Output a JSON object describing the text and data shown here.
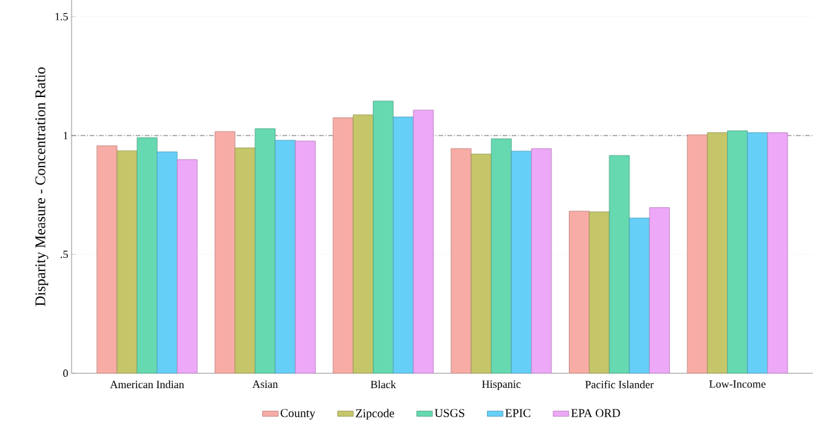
{
  "chart_data": {
    "type": "bar",
    "ylabel": "Disparity Measure - Concentration Ratio",
    "categories": [
      "American Indian",
      "Asian",
      "Black",
      "Hispanic",
      "Pacific Islander",
      "Low-Income"
    ],
    "series": [
      {
        "name": "County",
        "color": "#f8aca6",
        "values": [
          0.957,
          1.017,
          1.075,
          0.945,
          0.682,
          1.003
        ]
      },
      {
        "name": "Zipcode",
        "color": "#c5c66a",
        "values": [
          0.936,
          0.948,
          1.087,
          0.922,
          0.679,
          1.012
        ]
      },
      {
        "name": "USGS",
        "color": "#66d9b0",
        "values": [
          0.991,
          1.029,
          1.145,
          0.986,
          0.916,
          1.02
        ]
      },
      {
        "name": "EPIC",
        "color": "#66cff8",
        "values": [
          0.931,
          0.98,
          1.078,
          0.934,
          0.653,
          1.012
        ]
      },
      {
        "name": "EPA ORD",
        "color": "#eda8f7",
        "values": [
          0.899,
          0.977,
          1.107,
          0.945,
          0.697,
          1.012
        ]
      }
    ],
    "ylim": [
      0,
      1.57
    ],
    "yticks": [
      0,
      {
        "value": 0.5,
        "label": ".5"
      },
      1,
      1.5
    ],
    "grid": "y",
    "legend": "bottom",
    "ref_lines": [
      {
        "axis": "y",
        "value": 1,
        "color": "#707070",
        "line_style": "dashed"
      }
    ]
  }
}
